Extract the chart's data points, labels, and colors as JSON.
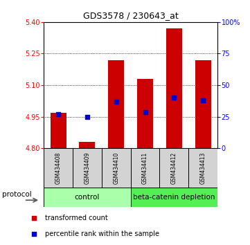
{
  "title": "GDS3578 / 230643_at",
  "samples": [
    "GSM434408",
    "GSM434409",
    "GSM434410",
    "GSM434411",
    "GSM434412",
    "GSM434413"
  ],
  "bar_bottom": 4.8,
  "bar_tops": [
    4.97,
    4.83,
    5.22,
    5.13,
    5.37,
    5.22
  ],
  "blue_dots": [
    4.962,
    4.948,
    5.02,
    4.972,
    5.04,
    5.028
  ],
  "ylim": [
    4.8,
    5.4
  ],
  "left_yticks": [
    4.8,
    4.95,
    5.1,
    5.25,
    5.4
  ],
  "right_yticks": [
    0,
    25,
    50,
    75,
    100
  ],
  "bar_color": "#cc0000",
  "dot_color": "#0000cc",
  "bar_width": 0.55,
  "control_color": "#aaffaa",
  "beta_color": "#55ee55",
  "sample_bg_color": "#d3d3d3",
  "title_fontsize": 9,
  "tick_fontsize": 7,
  "sample_fontsize": 5.5,
  "proto_fontsize": 7.5,
  "legend_fontsize": 7
}
